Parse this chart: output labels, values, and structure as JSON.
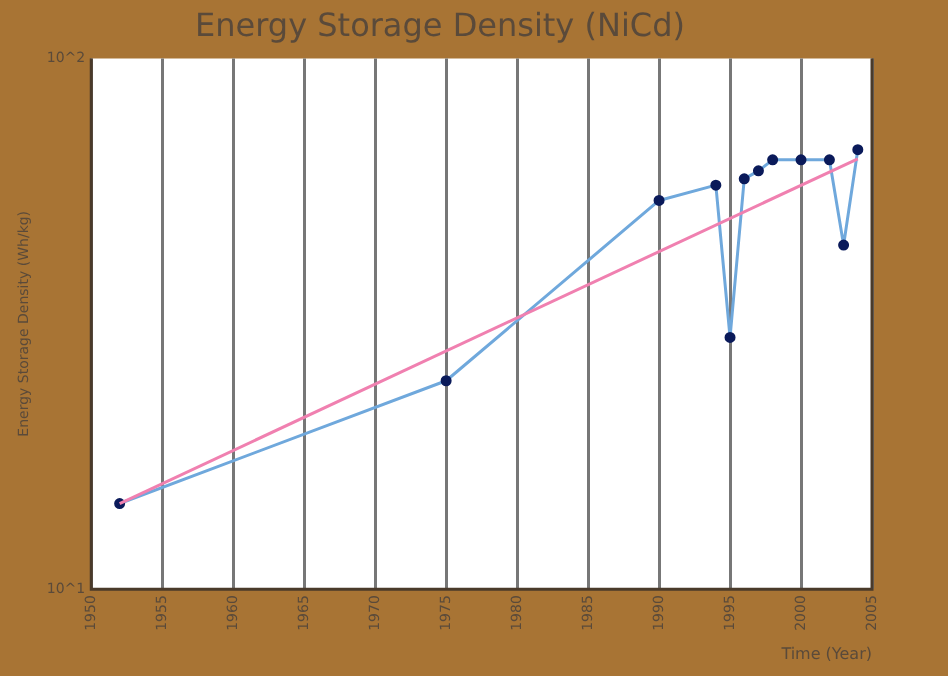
{
  "chart_data": {
    "type": "line",
    "title": "Energy Storage Density (NiCd)",
    "xlabel": "Time (Year)",
    "ylabel": "Energy Storage Density (Wh/kg)",
    "log": "y",
    "grid": "x",
    "legend": false,
    "marker": "circle",
    "line_style": "solid",
    "xlim": [
      1950,
      2005
    ],
    "xticks": [
      1950,
      1955,
      1960,
      1965,
      1970,
      1975,
      1980,
      1985,
      1990,
      1995,
      2000,
      2005
    ],
    "ylim": [
      10,
      100
    ],
    "yticks": [
      {
        "value": 10,
        "label": "10^1"
      },
      {
        "value": 100,
        "label": "10^2"
      }
    ],
    "series": [
      {
        "color": "#6fa8dc",
        "x": [
          1952,
          1975,
          1990,
          1994,
          1995,
          1996,
          1997,
          1998,
          2000,
          2002,
          2003,
          2004
        ],
        "values": [
          14.5,
          24.7,
          54,
          57.7,
          29.8,
          59.3,
          61.4,
          64.4,
          64.4,
          64.4,
          44.5,
          67.3
        ]
      },
      {
        "type": "line",
        "color": "#f080b0",
        "marker": "none",
        "x": [
          1952,
          2004
        ],
        "values": [
          14.5,
          64.7
        ]
      }
    ]
  }
}
